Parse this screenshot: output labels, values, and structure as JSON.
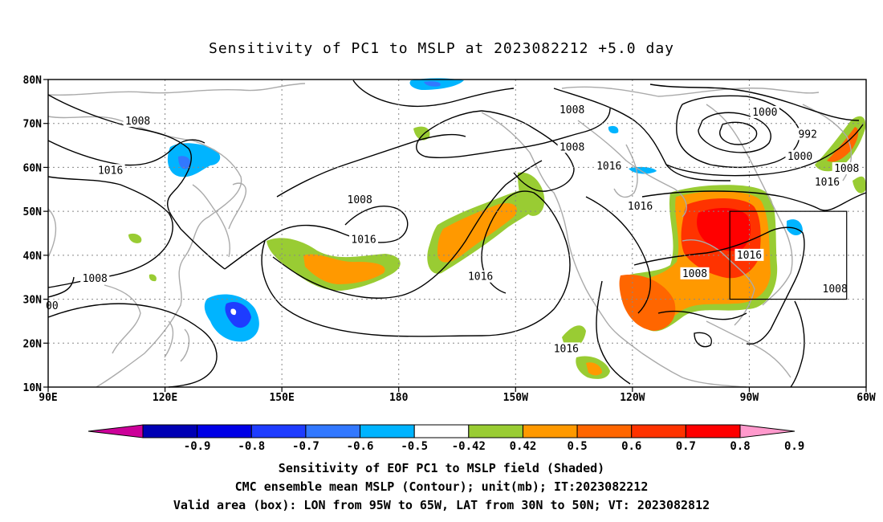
{
  "title": "Sensitivity of PC1 to MSLP at 2023082212 +5.0 day",
  "map": {
    "lon_range": [
      90,
      300
    ],
    "lat_range": [
      10,
      80
    ],
    "lat_labels": [
      "10N",
      "20N",
      "30N",
      "40N",
      "50N",
      "60N",
      "70N",
      "80N"
    ],
    "lon_labels": [
      "90E",
      "120E",
      "150E",
      "180",
      "150W",
      "120W",
      "90W",
      "60W"
    ],
    "gridlines": true
  },
  "contour_labels": [
    {
      "text": "1008",
      "lon": 113,
      "lat": 70.5
    },
    {
      "text": "1016",
      "lon": 106,
      "lat": 59.3
    },
    {
      "text": "1008",
      "lon": 170,
      "lat": 52.6
    },
    {
      "text": "1016",
      "lon": 171,
      "lat": 43.5
    },
    {
      "text": "1008",
      "lon": 102,
      "lat": 34.7
    },
    {
      "text": "00",
      "lon": 91,
      "lat": 28.5
    },
    {
      "text": "1008",
      "lon": 224.5,
      "lat": 73.1
    },
    {
      "text": "1008",
      "lon": 224.5,
      "lat": 64.6
    },
    {
      "text": "1016",
      "lon": 234,
      "lat": 60.3
    },
    {
      "text": "1016",
      "lon": 242,
      "lat": 51.1
    },
    {
      "text": "1016",
      "lon": 201,
      "lat": 35.1
    },
    {
      "text": "1016",
      "lon": 223,
      "lat": 18.7
    },
    {
      "text": "1008",
      "lon": 256,
      "lat": 35.8
    },
    {
      "text": "1016",
      "lon": 270,
      "lat": 40.0
    },
    {
      "text": "1008",
      "lon": 292,
      "lat": 32.3
    },
    {
      "text": "1000",
      "lon": 274,
      "lat": 72.5
    },
    {
      "text": "992",
      "lon": 285,
      "lat": 67.5
    },
    {
      "text": "1000",
      "lon": 283,
      "lat": 62.5
    },
    {
      "text": "1008",
      "lon": 295,
      "lat": 59.7
    },
    {
      "text": "1016",
      "lon": 290,
      "lat": 56.6
    }
  ],
  "valid_box": {
    "lon_west": -95,
    "lon_east": -65,
    "lat_south": 30,
    "lat_north": 50
  },
  "colorbar": {
    "colors": [
      "#cc0099",
      "#0000b4",
      "#0000e6",
      "#1e3cff",
      "#3278ff",
      "#00b4ff",
      "#ffffff",
      "#99cc33",
      "#ff9900",
      "#ff6600",
      "#ff3300",
      "#ff0000",
      "#ff99cc"
    ],
    "labels": [
      "-0.9",
      "-0.8",
      "-0.7",
      "-0.6",
      "-0.5",
      "-0.42",
      "0.42",
      "0.5",
      "0.6",
      "0.7",
      "0.8",
      "0.9"
    ]
  },
  "captions": [
    "Sensitivity of EOF PC1 to MSLP field (Shaded)",
    "CMC ensemble mean MSLP (Contour); unit(mb); IT:2023082212",
    "Valid area (box): LON from 95W to 65W, LAT from 30N to 50N; VT: 2023082812"
  ]
}
